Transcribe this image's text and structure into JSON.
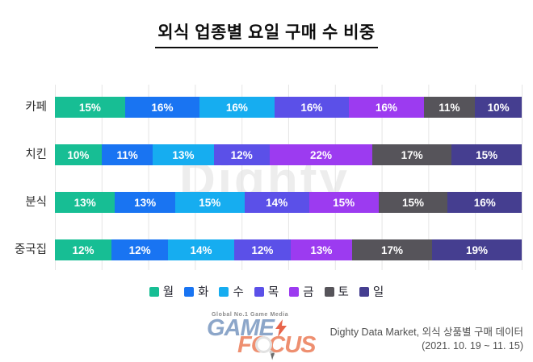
{
  "title": "외식 업종별 요일 구매 수 비중",
  "watermark": "Dighty",
  "chart_data": {
    "type": "bar",
    "variant": "horizontal-stacked",
    "unit": "%",
    "title": "외식 업종별 요일 구매 수 비중",
    "categories": [
      "카페",
      "치킨",
      "분식",
      "중국집"
    ],
    "series": [
      {
        "name": "월",
        "color": "#17BE94",
        "values": [
          15,
          10,
          13,
          12
        ]
      },
      {
        "name": "화",
        "color": "#1974F2",
        "values": [
          16,
          11,
          13,
          12
        ]
      },
      {
        "name": "수",
        "color": "#16ADF0",
        "values": [
          16,
          13,
          15,
          14
        ]
      },
      {
        "name": "목",
        "color": "#5B50E8",
        "values": [
          16,
          12,
          14,
          12
        ]
      },
      {
        "name": "금",
        "color": "#9C3BF0",
        "values": [
          16,
          22,
          15,
          13
        ]
      },
      {
        "name": "토",
        "color": "#56545A",
        "values": [
          11,
          17,
          15,
          17
        ]
      },
      {
        "name": "일",
        "color": "#453E90",
        "values": [
          10,
          15,
          16,
          19
        ]
      }
    ],
    "xlim": [
      0,
      100
    ],
    "grid": true,
    "gridline_step_percent": 10,
    "legend_position": "bottom",
    "value_labels": "inside-white"
  },
  "footer": {
    "logo": {
      "tagline": "Global No.1 Game Media",
      "word1": "GAME",
      "word2": "FOCUS",
      "word1_color": "#8CA6C9",
      "word2_color": "#EE8F70",
      "bolt_color": "#E8644A"
    },
    "source_line1": "Dighty Data Market, 외식 상품별 구매 데이터",
    "source_line2": "(2021. 10. 19 ~ 11. 15)"
  }
}
